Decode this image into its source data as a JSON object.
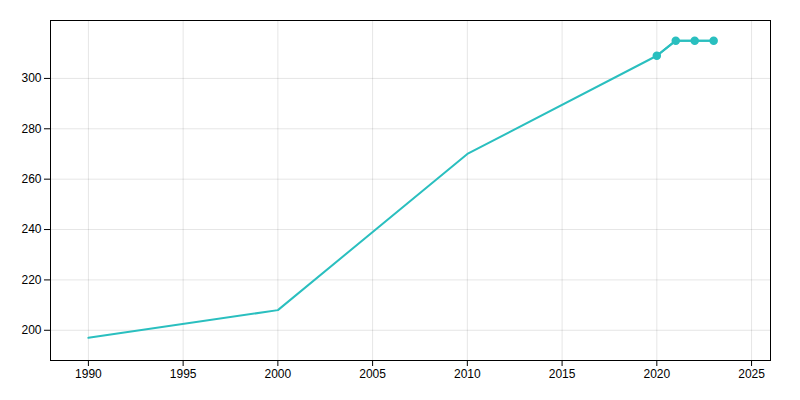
{
  "chart_data": {
    "type": "line",
    "x": [
      1990,
      2000,
      2010,
      2020,
      2021,
      2022,
      2023
    ],
    "series": [
      {
        "color": "#2abfbf",
        "values": [
          197,
          208,
          270,
          309,
          315,
          315,
          315
        ]
      },
      {
        "color": "#2abfbf",
        "marker": "o",
        "values": [
          null,
          null,
          null,
          309,
          315,
          315,
          315
        ]
      }
    ],
    "xlim": [
      1988,
      2026
    ],
    "ylim": [
      188,
      323
    ],
    "xticks": [
      1990,
      1995,
      2000,
      2005,
      2010,
      2015,
      2020,
      2025
    ],
    "yticks": [
      200,
      220,
      240,
      260,
      280,
      300
    ],
    "grid": true
  }
}
